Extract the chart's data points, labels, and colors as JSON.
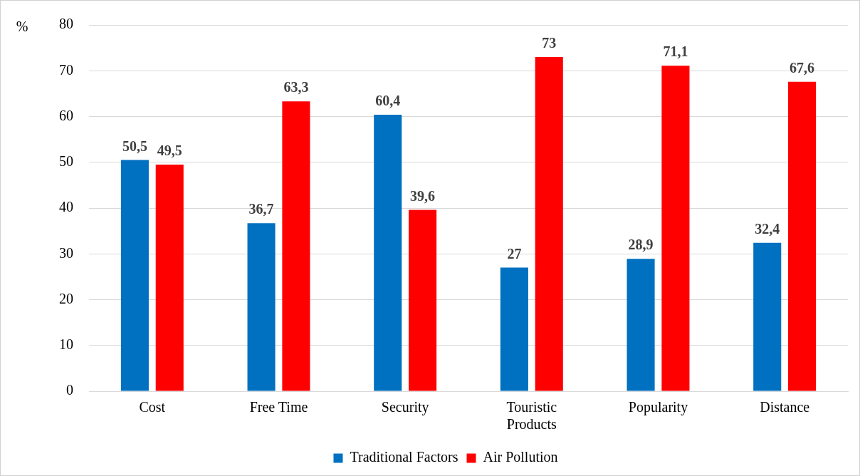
{
  "chart_data": {
    "type": "bar",
    "ylabel": "%",
    "categories": [
      "Cost",
      "Free Time",
      "Security",
      "Touristic Products",
      "Popularity",
      "Distance"
    ],
    "series": [
      {
        "name": "Traditional Factors",
        "color": "#0070c0",
        "values": [
          50.5,
          36.7,
          60.4,
          27,
          28.9,
          32.4
        ],
        "value_labels": [
          "50,5",
          "36,7",
          "60,4",
          "27",
          "28,9",
          "32,4"
        ]
      },
      {
        "name": "Air Pollution",
        "color": "#ff0000",
        "values": [
          49.5,
          63.3,
          39.6,
          73,
          71.1,
          67.6
        ],
        "value_labels": [
          "49,5",
          "63,3",
          "39,6",
          "73",
          "71,1",
          "67,6"
        ]
      }
    ],
    "ylim": [
      0,
      80
    ],
    "yticks": [
      0,
      10,
      20,
      30,
      40,
      50,
      60,
      70,
      80
    ],
    "grid": "y",
    "legend": "bottom"
  }
}
